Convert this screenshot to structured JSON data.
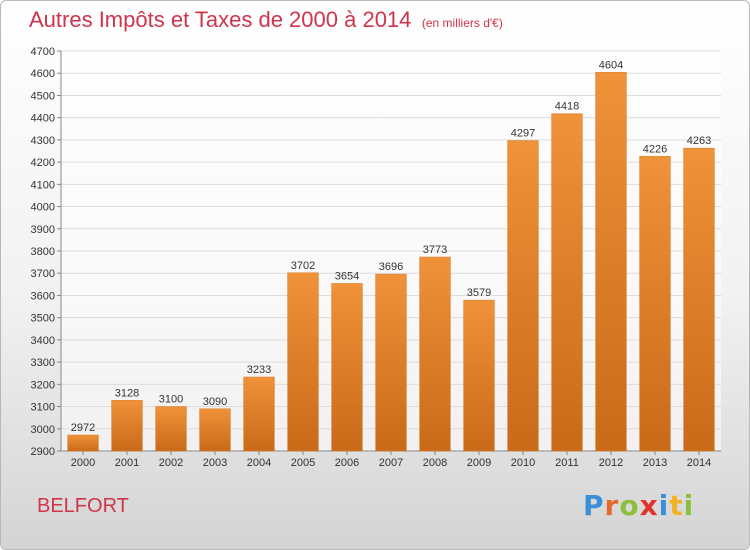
{
  "chart_data": {
    "type": "bar",
    "title": "Autres Impôts et Taxes de 2000 à 2014",
    "subtitle": "(en milliers d'€)",
    "categories": [
      "2000",
      "2001",
      "2002",
      "2003",
      "2004",
      "2005",
      "2006",
      "2007",
      "2008",
      "2009",
      "2010",
      "2011",
      "2012",
      "2013",
      "2014"
    ],
    "values": [
      2972,
      3128,
      3100,
      3090,
      3233,
      3702,
      3654,
      3696,
      3773,
      3579,
      4297,
      4418,
      4604,
      4226,
      4263
    ],
    "ylim": [
      2900,
      4700
    ],
    "yticks": [
      2900,
      3000,
      3100,
      3200,
      3300,
      3400,
      3500,
      3600,
      3700,
      3800,
      3900,
      4000,
      4100,
      4200,
      4300,
      4400,
      4500,
      4600,
      4700
    ],
    "grid": true,
    "bar_color": "#f0923a",
    "bar_color_dark": "#c86a18",
    "grid_color": "#dcdcdc"
  },
  "footer": {
    "city": "BELFORT",
    "logo_letters": [
      {
        "ch": "P",
        "color": "#3a8fd6"
      },
      {
        "ch": "r",
        "color": "#e46a2c"
      },
      {
        "ch": "o",
        "color": "#8cbf3a"
      },
      {
        "ch": "x",
        "color": "#e0342c"
      },
      {
        "ch": "i",
        "color": "#3a8fd6"
      },
      {
        "ch": "t",
        "color": "#f2b320"
      },
      {
        "ch": "i",
        "color": "#8cbf3a"
      }
    ]
  },
  "colors": {
    "title": "#d0344a",
    "text": "#333333"
  }
}
